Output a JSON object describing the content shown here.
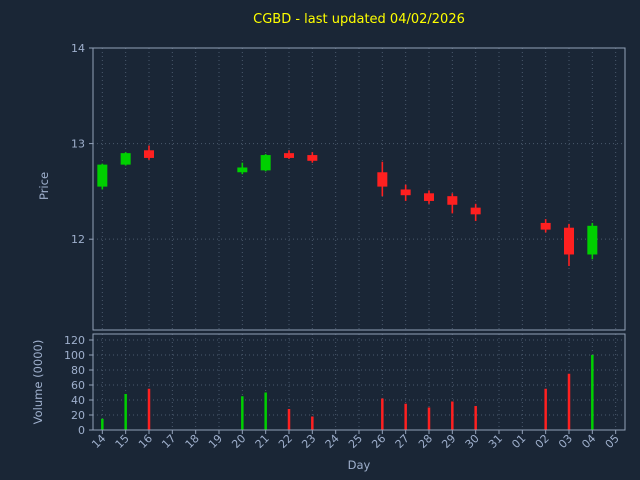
{
  "chart_data": {
    "type": "candlestick",
    "title": "CGBD - last updated 04/02/2026",
    "xlabel": "Day",
    "ylabel_price": "Price",
    "ylabel_volume": "Volume (0000)",
    "x_categories": [
      "14",
      "15",
      "16",
      "17",
      "18",
      "19",
      "20",
      "21",
      "22",
      "23",
      "24",
      "25",
      "26",
      "27",
      "28",
      "29",
      "30",
      "31",
      "01",
      "02",
      "03",
      "04",
      "05"
    ],
    "price_ticks": [
      12,
      13,
      14
    ],
    "price_ylim": [
      11.05,
      14.0
    ],
    "volume_ticks": [
      0,
      20,
      40,
      60,
      80,
      100,
      120
    ],
    "volume_ylim": [
      0,
      128
    ],
    "grid": "dotted",
    "legend": "none",
    "series": [
      {
        "day": "14",
        "open": 12.55,
        "high": 12.79,
        "low": 12.52,
        "close": 12.78,
        "volume": 15
      },
      {
        "day": "15",
        "open": 12.78,
        "high": 12.91,
        "low": 12.77,
        "close": 12.9,
        "volume": 48
      },
      {
        "day": "16",
        "open": 12.93,
        "high": 12.98,
        "low": 12.83,
        "close": 12.85,
        "volume": 55
      },
      {
        "day": "20",
        "open": 12.7,
        "high": 12.8,
        "low": 12.68,
        "close": 12.75,
        "volume": 45
      },
      {
        "day": "21",
        "open": 12.72,
        "high": 12.89,
        "low": 12.71,
        "close": 12.88,
        "volume": 50
      },
      {
        "day": "22",
        "open": 12.9,
        "high": 12.93,
        "low": 12.84,
        "close": 12.85,
        "volume": 28
      },
      {
        "day": "23",
        "open": 12.88,
        "high": 12.91,
        "low": 12.8,
        "close": 12.82,
        "volume": 18
      },
      {
        "day": "26",
        "open": 12.7,
        "high": 12.81,
        "low": 12.45,
        "close": 12.55,
        "volume": 42
      },
      {
        "day": "27",
        "open": 12.52,
        "high": 12.57,
        "low": 12.4,
        "close": 12.46,
        "volume": 35
      },
      {
        "day": "28",
        "open": 12.48,
        "high": 12.51,
        "low": 12.37,
        "close": 12.4,
        "volume": 30
      },
      {
        "day": "29",
        "open": 12.45,
        "high": 12.48,
        "low": 12.27,
        "close": 12.36,
        "volume": 38
      },
      {
        "day": "30",
        "open": 12.33,
        "high": 12.37,
        "low": 12.19,
        "close": 12.26,
        "volume": 32
      },
      {
        "day": "02",
        "open": 12.17,
        "high": 12.21,
        "low": 12.07,
        "close": 12.1,
        "volume": 55
      },
      {
        "day": "03",
        "open": 12.12,
        "high": 12.16,
        "low": 11.72,
        "close": 11.84,
        "volume": 75
      },
      {
        "day": "04",
        "open": 11.84,
        "high": 12.17,
        "low": 11.79,
        "close": 12.14,
        "volume": 100
      }
    ],
    "colors": {
      "background": "#1a2636",
      "title": "#ffff00",
      "text": "#9fb0cd",
      "frame": "#93a1b8",
      "grid": "#4a5a6e",
      "up": "#00d000",
      "down": "#ff2020"
    }
  }
}
